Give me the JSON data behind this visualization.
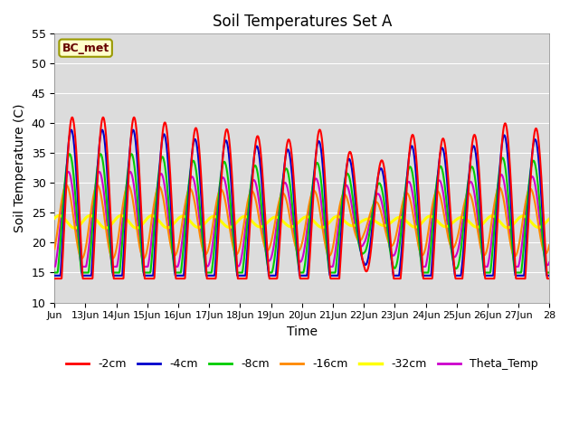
{
  "title": "Soil Temperatures Set A",
  "xlabel": "Time",
  "ylabel": "Soil Temperature (C)",
  "ylim": [
    10,
    55
  ],
  "yticks": [
    10,
    15,
    20,
    25,
    30,
    35,
    40,
    45,
    50,
    55
  ],
  "x_start_day": 12.0,
  "x_end_day": 28.0,
  "xtick_days": [
    12,
    13,
    14,
    15,
    16,
    17,
    18,
    19,
    20,
    21,
    22,
    23,
    24,
    25,
    26,
    27,
    28
  ],
  "xtick_labels": [
    "Jun",
    "13Jun",
    "14Jun",
    "15Jun",
    "16Jun",
    "17Jun",
    "18Jun",
    "19Jun",
    "20Jun",
    "21Jun",
    "22Jun",
    "23Jun",
    "24Jun",
    "25Jun",
    "26Jun",
    "27Jun",
    "28"
  ],
  "colors": {
    "-2cm": "#ff0000",
    "-4cm": "#0000cc",
    "-8cm": "#00cc00",
    "-16cm": "#ff8800",
    "-32cm": "#ffff00",
    "Theta_Temp": "#cc00cc"
  },
  "linewidths": {
    "-2cm": 1.5,
    "-4cm": 1.5,
    "-8cm": 1.5,
    "-16cm": 1.5,
    "-32cm": 2.2,
    "Theta_Temp": 1.5
  },
  "legend_label": "BC_met",
  "legend_bg": "#ffffcc",
  "legend_border": "#999900",
  "plot_bg": "#dcdcdc",
  "figsize": [
    6.4,
    4.8
  ],
  "dpi": 100,
  "day_amplitudes": [
    17.5,
    17.5,
    17.5,
    17.5,
    16.0,
    15.5,
    15.5,
    13.5,
    14.0,
    16.5,
    8.0,
    12.0,
    16.5,
    12.0,
    16.5,
    16.5,
    15.0
  ],
  "base_temp": 23.5,
  "peak_phase": 0.57
}
